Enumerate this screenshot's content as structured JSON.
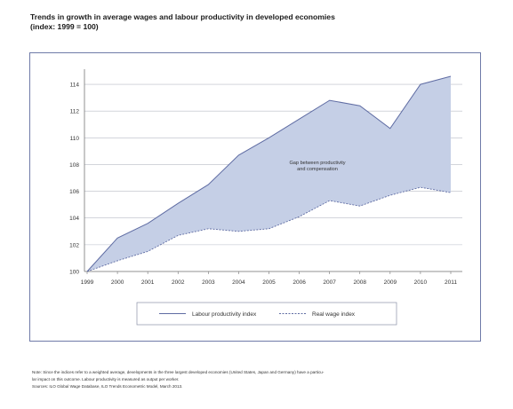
{
  "title_line1": "Trends in growth in average wages and labour productivity in developed economies",
  "title_line2": "(index: 1999 = 100)",
  "chart_data": {
    "type": "area",
    "x": [
      "1999",
      "2000",
      "2001",
      "2002",
      "2003",
      "2004",
      "2005",
      "2006",
      "2007",
      "2008",
      "2009",
      "2010",
      "2011"
    ],
    "series": [
      {
        "name": "Labour productivity index",
        "values": [
          100,
          102.5,
          103.6,
          105.1,
          106.5,
          108.7,
          110.0,
          111.4,
          112.8,
          112.4,
          110.7,
          114.0,
          114.6
        ]
      },
      {
        "name": "Real wage index",
        "values": [
          100,
          100.8,
          101.5,
          102.7,
          103.2,
          103.0,
          103.2,
          104.1,
          105.3,
          104.9,
          105.7,
          106.3,
          105.9
        ]
      }
    ],
    "ylim": [
      100,
      115
    ],
    "yticks": [
      100,
      102,
      104,
      106,
      108,
      110,
      112,
      114
    ],
    "grid": true,
    "legend": "bottom",
    "annotation": "Gap between productivity and compensation",
    "colors": {
      "fill": "#c5cfe6",
      "line": "#5f6ca3",
      "grid": "#b9bcc6",
      "axis": "#777"
    }
  },
  "notes": {
    "line1": "Note: Since the indices refer to a weighted average, developments in the three largest developed economies (United States, Japan and Germany) have a particu-",
    "line2": "lar impact on this outcome. Labour productivity is measured as output per worker.",
    "line3": "Sources: ILO Global Wage Database, ILO Trends Econometric Model, March 2013."
  }
}
